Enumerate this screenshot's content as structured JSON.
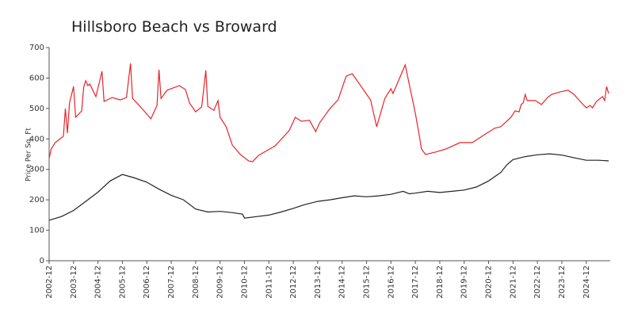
{
  "chart_data": {
    "type": "line",
    "title": "Hillsboro Beach vs Broward",
    "ylabel": "Price Per Sq. Ft",
    "xlim": [
      "2002-12",
      "2025-11"
    ],
    "xticks": [
      "2002-12",
      "2003-12",
      "2004-12",
      "2005-12",
      "2006-12",
      "2007-12",
      "2008-12",
      "2009-12",
      "2010-12",
      "2011-12",
      "2012-12",
      "2013-12",
      "2014-12",
      "2015-12",
      "2016-12",
      "2017-12",
      "2018-12",
      "2019-12",
      "2020-12",
      "2021-12",
      "2022-12",
      "2023-12",
      "2024-12"
    ],
    "ylim": [
      0,
      700
    ],
    "yticks": [
      0,
      100,
      200,
      300,
      400,
      500,
      600,
      700
    ],
    "grid": false,
    "series": [
      {
        "color": "#e8242a",
        "x": [
          "2002-12",
          "2003-01",
          "2003-03",
          "2003-07",
          "2003-08",
          "2003-09",
          "2003-10",
          "2003-12",
          "2004-01",
          "2004-04",
          "2004-05",
          "2004-06",
          "2004-07",
          "2004-08",
          "2004-11",
          "2005-02",
          "2005-03",
          "2005-07",
          "2005-11",
          "2006-02",
          "2006-04",
          "2006-05",
          "2006-10",
          "2007-02",
          "2007-05",
          "2007-06",
          "2007-07",
          "2007-10",
          "2008-04",
          "2008-07",
          "2008-09",
          "2008-12",
          "2009-03",
          "2009-05",
          "2009-06",
          "2009-09",
          "2009-11",
          "2009-12",
          "2010-03",
          "2010-06",
          "2010-10",
          "2011-02",
          "2011-04",
          "2011-07",
          "2012-03",
          "2012-10",
          "2013-01",
          "2013-04",
          "2013-08",
          "2013-11",
          "2014-01",
          "2014-04",
          "2014-06",
          "2014-10",
          "2015-02",
          "2015-05",
          "2016-02",
          "2016-05",
          "2016-09",
          "2016-12",
          "2017-01",
          "2017-07",
          "2017-12",
          "2018-02",
          "2018-03",
          "2018-05",
          "2018-10",
          "2019-03",
          "2019-10",
          "2020-04",
          "2020-10",
          "2021-03",
          "2021-06",
          "2021-11",
          "2022-01",
          "2022-03",
          "2022-04",
          "2022-05",
          "2022-06",
          "2022-07",
          "2022-11",
          "2023-02",
          "2023-05",
          "2023-07",
          "2023-11",
          "2024-03",
          "2024-06",
          "2024-09",
          "2024-12",
          "2025-02",
          "2025-03",
          "2025-05",
          "2025-08",
          "2025-09",
          "2025-10",
          "2025-11"
        ],
        "values": [
          336,
          367,
          388,
          409,
          500,
          419,
          518,
          572,
          471,
          492,
          570,
          591,
          575,
          580,
          539,
          622,
          523,
          536,
          528,
          536,
          648,
          533,
          497,
          466,
          510,
          627,
          533,
          560,
          575,
          562,
          518,
          489,
          505,
          625,
          507,
          494,
          526,
          471,
          440,
          380,
          349,
          328,
          325,
          346,
          377,
          427,
          471,
          458,
          461,
          424,
          453,
          481,
          500,
          528,
          606,
          614,
          528,
          440,
          533,
          565,
          549,
          643,
          484,
          409,
          367,
          349,
          357,
          367,
          388,
          388,
          414,
          435,
          440,
          471,
          492,
          489,
          513,
          518,
          546,
          526,
          526,
          513,
          536,
          546,
          554,
          560,
          546,
          523,
          502,
          510,
          502,
          523,
          539,
          526,
          572,
          549
        ]
      },
      {
        "color": "#222222",
        "x": [
          "2002-12",
          "2003-06",
          "2003-12",
          "2004-06",
          "2004-12",
          "2005-06",
          "2005-12",
          "2006-06",
          "2006-12",
          "2007-06",
          "2007-12",
          "2008-06",
          "2008-12",
          "2009-06",
          "2009-12",
          "2010-06",
          "2010-11",
          "2010-12",
          "2011-06",
          "2011-12",
          "2012-06",
          "2012-12",
          "2013-06",
          "2013-12",
          "2014-06",
          "2014-12",
          "2015-06",
          "2015-12",
          "2016-06",
          "2016-12",
          "2017-06",
          "2017-09",
          "2017-12",
          "2018-06",
          "2018-12",
          "2019-06",
          "2019-12",
          "2020-06",
          "2020-12",
          "2021-06",
          "2021-09",
          "2021-12",
          "2022-06",
          "2022-12",
          "2023-06",
          "2023-12",
          "2024-06",
          "2024-12",
          "2025-06",
          "2025-11"
        ],
        "values": [
          133,
          145,
          165,
          195,
          225,
          262,
          283,
          272,
          258,
          235,
          215,
          200,
          170,
          160,
          162,
          158,
          153,
          140,
          145,
          150,
          160,
          172,
          185,
          195,
          200,
          207,
          213,
          210,
          213,
          218,
          228,
          220,
          222,
          228,
          224,
          228,
          232,
          242,
          262,
          290,
          315,
          332,
          342,
          348,
          351,
          347,
          338,
          330,
          330,
          328
        ]
      }
    ]
  }
}
